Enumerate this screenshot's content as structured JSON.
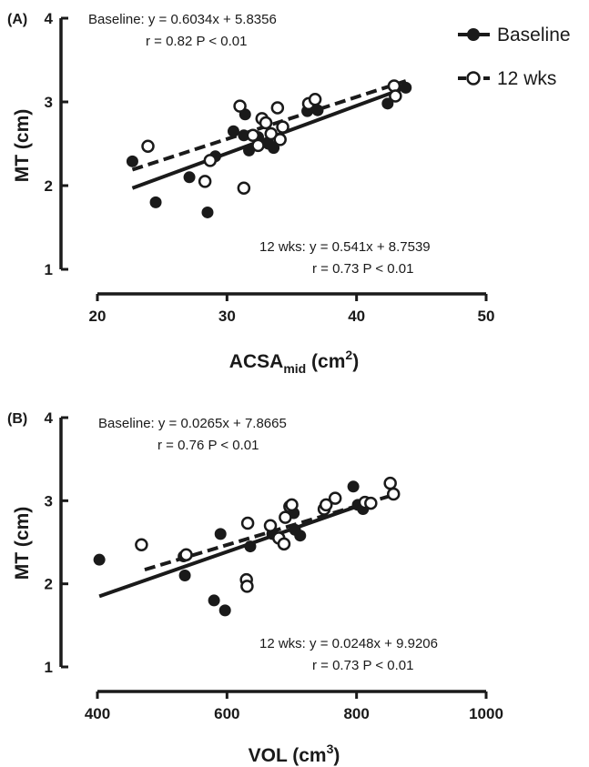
{
  "legend": {
    "baseline_label": "Baseline",
    "wks12_label": "12 wks"
  },
  "chart_data": [
    {
      "type": "scatter",
      "panel_label": "(A)",
      "ylabel": "MT (cm)",
      "xlabel_parts": {
        "base": "ACSA",
        "sub": "mid",
        "mid": " (cm",
        "sup": "2",
        "end": ")"
      },
      "xlim": [
        20,
        50
      ],
      "ylim": [
        1,
        4
      ],
      "xticks": [
        20,
        30,
        40,
        50
      ],
      "yticks": [
        1,
        2,
        3,
        4
      ],
      "grid": false,
      "legend_position": "top-right",
      "series": [
        {
          "name": "Baseline",
          "marker": "filled-circle",
          "points": [
            [
              22.7,
              2.29
            ],
            [
              24.5,
              1.8
            ],
            [
              27.1,
              2.1
            ],
            [
              28.5,
              1.68
            ],
            [
              29.1,
              2.35
            ],
            [
              30.5,
              2.65
            ],
            [
              31.3,
              2.6
            ],
            [
              31.4,
              2.85
            ],
            [
              31.7,
              2.42
            ],
            [
              32.4,
              2.58
            ],
            [
              33.2,
              2.5
            ],
            [
              33.6,
              2.45
            ],
            [
              36.2,
              2.89
            ],
            [
              36.5,
              2.95
            ],
            [
              37.0,
              2.9
            ],
            [
              42.4,
              2.98
            ],
            [
              43.8,
              3.17
            ]
          ],
          "fit": {
            "x": [
              22.7,
              43.8
            ],
            "y": [
              1.97,
              3.17
            ]
          },
          "annotation": {
            "prefix": "Baseline: ",
            "formula": "y = 0.6034x + 5.8356",
            "stats": "r = 0.82 P < 0.01"
          }
        },
        {
          "name": "12 wks",
          "marker": "open-circle",
          "points": [
            [
              23.9,
              2.47
            ],
            [
              28.3,
              2.05
            ],
            [
              28.7,
              2.3
            ],
            [
              31.0,
              2.95
            ],
            [
              31.3,
              1.97
            ],
            [
              32.0,
              2.6
            ],
            [
              32.4,
              2.48
            ],
            [
              32.7,
              2.8
            ],
            [
              33.0,
              2.75
            ],
            [
              33.4,
              2.62
            ],
            [
              33.9,
              2.93
            ],
            [
              34.3,
              2.7
            ],
            [
              34.1,
              2.55
            ],
            [
              36.3,
              2.98
            ],
            [
              36.8,
              3.03
            ],
            [
              42.9,
              3.19
            ],
            [
              43.0,
              3.07
            ]
          ],
          "fit": {
            "x": [
              22.7,
              43.8
            ],
            "y": [
              2.19,
              3.25
            ]
          },
          "annotation": {
            "prefix": "12 wks: ",
            "formula": "y = 0.541x + 8.7539",
            "stats": "r = 0.73 P < 0.01"
          }
        }
      ]
    },
    {
      "type": "scatter",
      "panel_label": "(B)",
      "ylabel": "MT (cm)",
      "xlabel_parts": {
        "base": "VOL",
        "sub": "",
        "mid": " (cm",
        "sup": "3",
        "end": ")"
      },
      "xlim": [
        400,
        1000
      ],
      "ylim": [
        1,
        4
      ],
      "xticks": [
        400,
        600,
        800,
        1000
      ],
      "yticks": [
        1,
        2,
        3,
        4
      ],
      "grid": false,
      "legend_position": "none",
      "series": [
        {
          "name": "Baseline",
          "marker": "filled-circle",
          "points": [
            [
              403,
              2.29
            ],
            [
              533,
              2.33
            ],
            [
              535,
              2.1
            ],
            [
              580,
              1.8
            ],
            [
              590,
              2.6
            ],
            [
              597,
              1.68
            ],
            [
              636,
              2.45
            ],
            [
              670,
              2.6
            ],
            [
              700,
              2.95
            ],
            [
              703,
              2.85
            ],
            [
              705,
              2.65
            ],
            [
              713,
              2.58
            ],
            [
              795,
              3.17
            ],
            [
              802,
              2.95
            ],
            [
              810,
              2.9
            ],
            [
              815,
              2.98
            ]
          ],
          "fit": {
            "x": [
              403,
              815
            ],
            "y": [
              1.85,
              2.97
            ]
          },
          "annotation": {
            "prefix": "Baseline: ",
            "formula": "y = 0.0265x + 7.8665",
            "stats": "r = 0.76 P < 0.01"
          }
        },
        {
          "name": "12 wks",
          "marker": "open-circle",
          "points": [
            [
              468,
              2.47
            ],
            [
              537,
              2.35
            ],
            [
              630,
              2.05
            ],
            [
              631,
              1.97
            ],
            [
              632,
              2.73
            ],
            [
              667,
              2.7
            ],
            [
              680,
              2.55
            ],
            [
              688,
              2.48
            ],
            [
              690,
              2.8
            ],
            [
              697,
              2.93
            ],
            [
              700,
              2.95
            ],
            [
              750,
              2.9
            ],
            [
              753,
              2.95
            ],
            [
              767,
              3.03
            ],
            [
              813,
              2.98
            ],
            [
              822,
              2.97
            ],
            [
              852,
              3.21
            ],
            [
              857,
              3.08
            ]
          ],
          "fit": {
            "x": [
              473,
              857
            ],
            "y": [
              2.17,
              3.07
            ]
          },
          "annotation": {
            "prefix": "12 wks: ",
            "formula": "y = 0.0248x + 9.9206",
            "stats": "r = 0.73 P < 0.01"
          }
        }
      ]
    }
  ]
}
